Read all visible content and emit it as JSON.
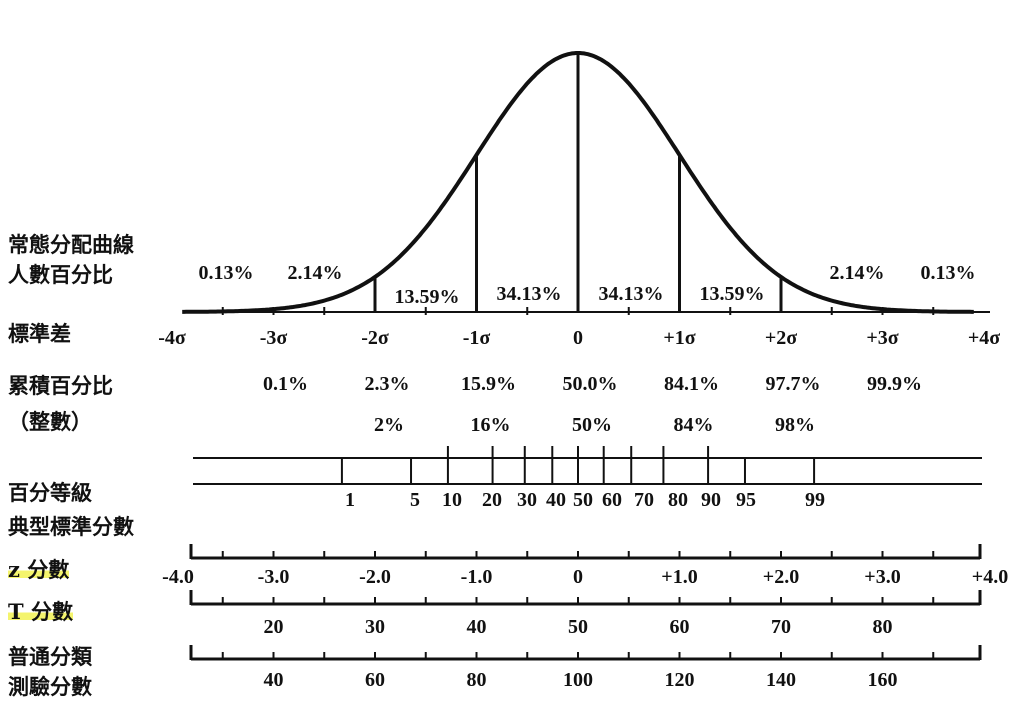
{
  "row_labels": {
    "curve_title_1": "常態分配曲線",
    "curve_title_2": "人數百分比",
    "sd": "標準差",
    "cum": "累積百分比",
    "cum_round": "（整數）",
    "pr": "百分等級",
    "std": "典型標準分數",
    "z": "z 分數",
    "t": "T 分數",
    "gen_1": "普通分類",
    "gen_2": "測驗分數"
  },
  "area_percents": [
    "0.13%",
    "2.14%",
    "13.59%",
    "34.13%",
    "34.13%",
    "13.59%",
    "2.14%",
    "0.13%"
  ],
  "sigma_labels": [
    "-4σ",
    "-3σ",
    "-2σ",
    "-1σ",
    "0",
    "+1σ",
    "+2σ",
    "+3σ",
    "+4σ"
  ],
  "cumulative_percents": [
    "0.1%",
    "2.3%",
    "15.9%",
    "50.0%",
    "84.1%",
    "97.7%",
    "99.9%"
  ],
  "cumulative_rounded": [
    "2%",
    "16%",
    "50%",
    "84%",
    "98%"
  ],
  "percentile_ranks": [
    "1",
    "5",
    "10",
    "20",
    "30",
    "40",
    "50",
    "60",
    "70",
    "80",
    "90",
    "95",
    "99"
  ],
  "z_scores": [
    "-4.0",
    "-3.0",
    "-2.0",
    "-1.0",
    "0",
    "+1.0",
    "+2.0",
    "+3.0",
    "+4.0"
  ],
  "t_scores": [
    "20",
    "30",
    "40",
    "50",
    "60",
    "70",
    "80"
  ],
  "general_scores": [
    "40",
    "60",
    "80",
    "100",
    "120",
    "140",
    "160"
  ],
  "colors": {
    "ink": "#111111",
    "highlight": "#f0f03c"
  }
}
